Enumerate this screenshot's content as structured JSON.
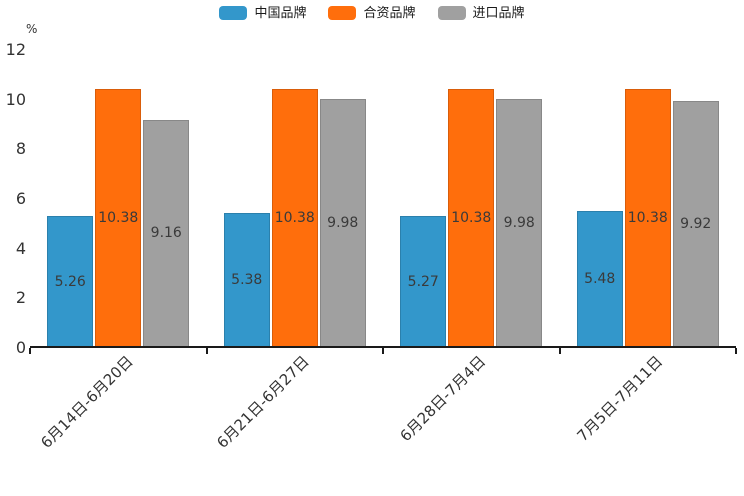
{
  "chart_data": {
    "type": "bar",
    "title": "",
    "categories": [
      "6月14日-6月20日",
      "6月21日-6月27日",
      "6月28日-7月4日",
      "7月5日-7月11日"
    ],
    "series": [
      {
        "name": "中国品牌",
        "color": "#3397CB",
        "values": [
          5.26,
          5.38,
          5.27,
          5.48
        ]
      },
      {
        "name": "合资品牌",
        "color": "#FF6E0C",
        "values": [
          10.38,
          10.38,
          10.38,
          10.38
        ]
      },
      {
        "name": "进口品牌",
        "color": "#A0A0A0",
        "values": [
          9.16,
          9.98,
          9.98,
          9.92
        ]
      }
    ],
    "xlabel": "",
    "ylabel": "%",
    "ylim": [
      0,
      12
    ],
    "yticks": [
      0,
      2,
      4,
      6,
      8,
      10,
      12
    ],
    "grid": false,
    "legend_position": "top",
    "value_labels": true,
    "xtick_rotation_deg": 45,
    "colors": {
      "axis": "#1a1a1a",
      "tick_label": "#333333",
      "value_label": "#3a3a3a",
      "background": "#ffffff"
    }
  }
}
